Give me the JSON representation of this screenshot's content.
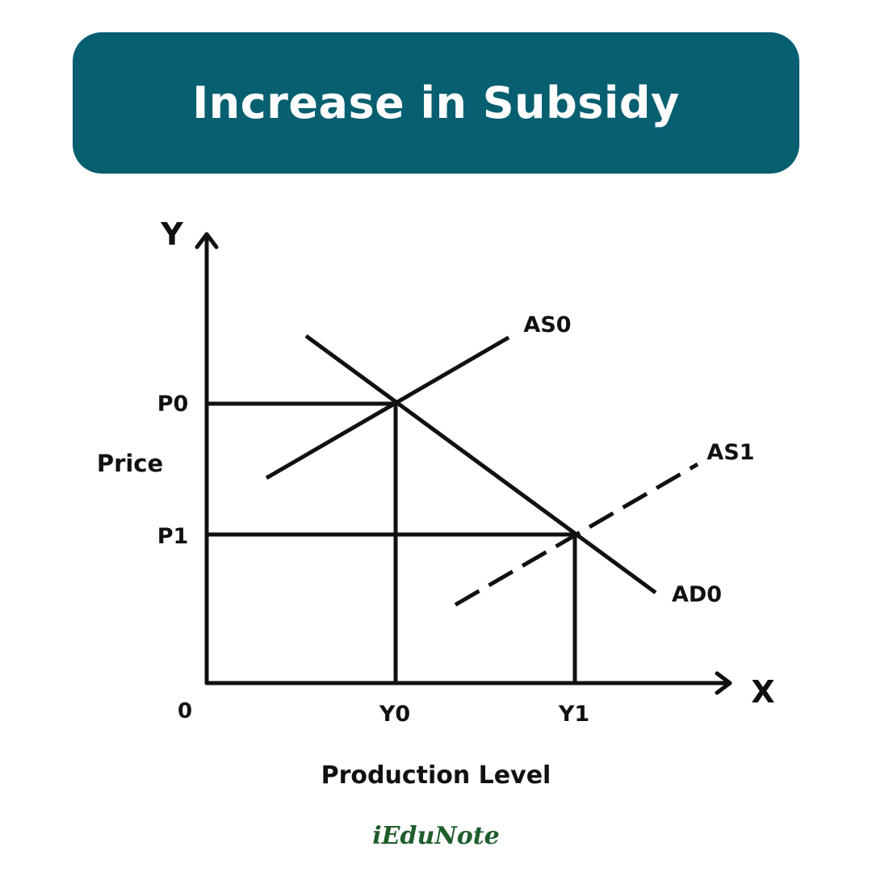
{
  "title": "Increase in Subsidy",
  "axes": {
    "y_letter": "Y",
    "x_letter": "X",
    "origin": "0",
    "y_label": "Price",
    "x_label": "Production Level"
  },
  "ticks": {
    "p0": "P0",
    "p1": "P1",
    "y0": "Y0",
    "y1": "Y1"
  },
  "curves": {
    "as0": "AS0",
    "as1": "AS1",
    "ad0": "AD0"
  },
  "brand": "iEduNote",
  "colors": {
    "banner": "#075f70",
    "brand": "#1f5e2c",
    "ink": "#111111"
  }
}
